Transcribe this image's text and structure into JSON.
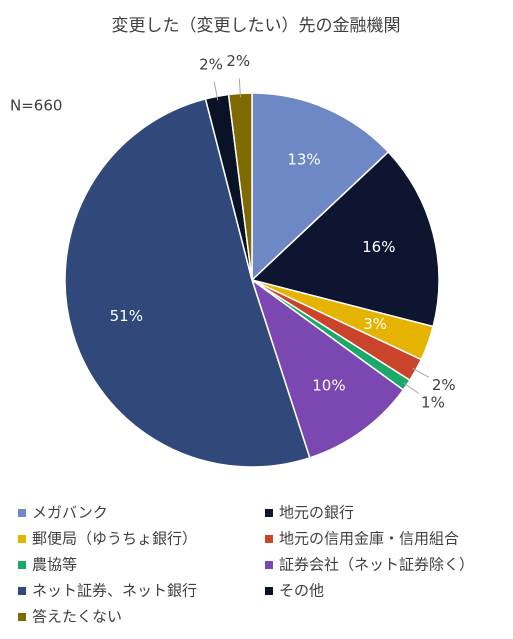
{
  "chart_data": {
    "type": "pie",
    "title": "変更した（変更したい）先の金融機関",
    "annotation": "N=660",
    "categories": [
      "メガバンク",
      "地元の銀行",
      "郵便局（ゆうちょ銀行）",
      "地元の信用金庫・信用組合",
      "農協等",
      "証券会社（ネット証券除く）",
      "ネット証券、ネット銀行",
      "その他",
      "答えたくない"
    ],
    "values": [
      13,
      16,
      3,
      2,
      1,
      10,
      51,
      2,
      2
    ],
    "value_labels": [
      "13%",
      "16%",
      "3%",
      "2%",
      "1%",
      "10%",
      "51%",
      "2%",
      "2%"
    ],
    "colors": [
      "#6d88c4",
      "#0d1530",
      "#e5b400",
      "#c9442b",
      "#1ba96b",
      "#7b47b0",
      "#30497a",
      "#0a1226",
      "#7e6a00"
    ],
    "legend": "bottom"
  }
}
